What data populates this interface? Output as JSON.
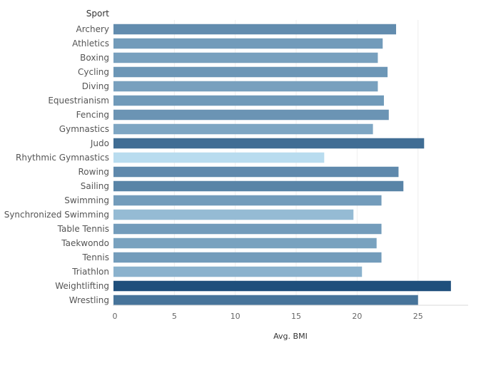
{
  "chart_data": {
    "type": "bar",
    "orientation": "horizontal",
    "row_header": "Sport",
    "xlabel": "Avg. BMI",
    "xlim": [
      0,
      29
    ],
    "xticks": [
      0,
      5,
      10,
      15,
      20,
      25
    ],
    "grid": true,
    "categories": [
      "Archery",
      "Athletics",
      "Boxing",
      "Cycling",
      "Diving",
      "Equestrianism",
      "Fencing",
      "Gymnastics",
      "Judo",
      "Rhythmic Gymnastics",
      "Rowing",
      "Sailing",
      "Swimming",
      "Synchronized Swimming",
      "Table Tennis",
      "Taekwondo",
      "Tennis",
      "Triathlon",
      "Weightlifting",
      "Wrestling"
    ],
    "values": [
      23.2,
      22.1,
      21.7,
      22.5,
      21.7,
      22.2,
      22.6,
      21.3,
      25.5,
      17.3,
      23.4,
      23.8,
      22.0,
      19.7,
      22.0,
      21.6,
      22.0,
      20.4,
      27.7,
      25.0
    ],
    "color_scale": [
      "#b9dcef",
      "#1f4f7c"
    ]
  }
}
